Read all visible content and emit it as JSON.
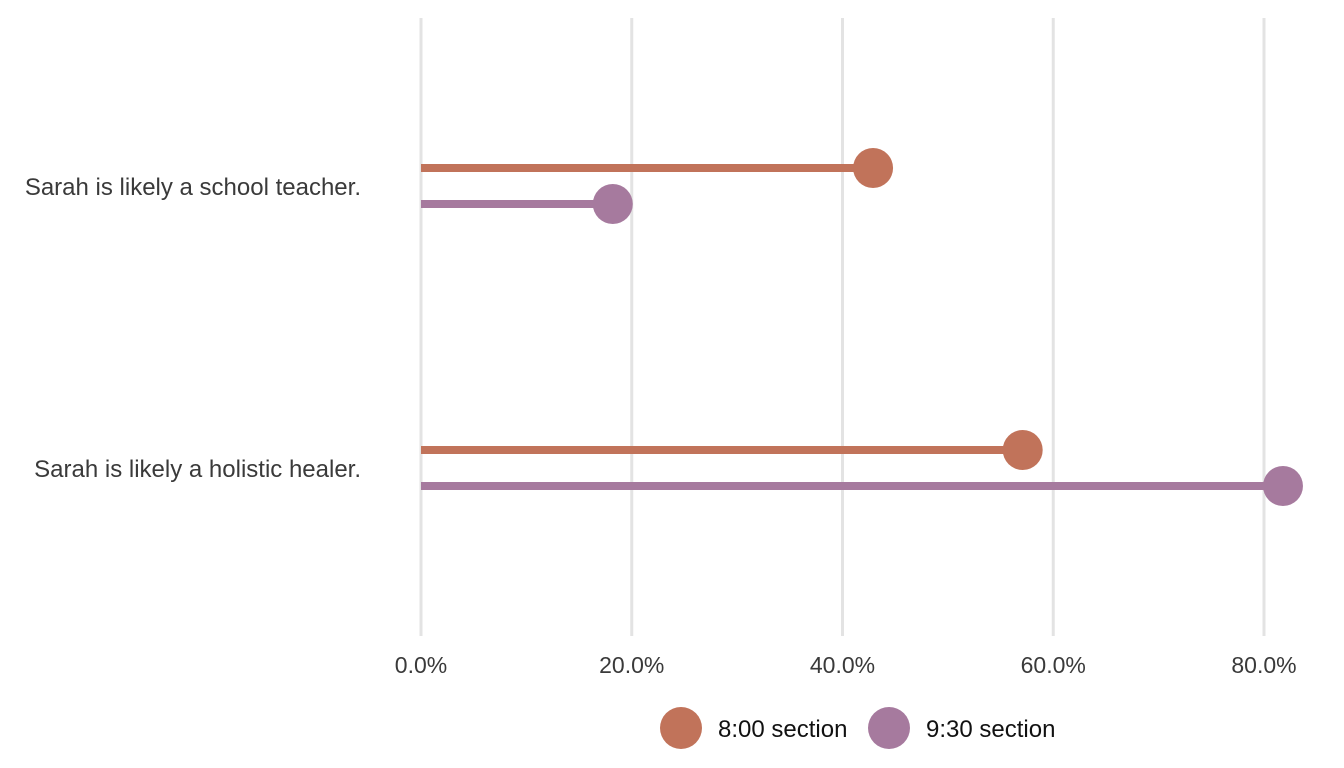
{
  "chart_data": {
    "type": "lollipop",
    "orientation": "horizontal",
    "categories": [
      "Sarah is likely a school teacher.",
      "Sarah is likely a holistic healer."
    ],
    "series": [
      {
        "name": "8:00 section",
        "color": "#c1735a",
        "values": [
          42.9,
          57.1
        ]
      },
      {
        "name": "9:30 section",
        "color": "#a67a9e",
        "values": [
          18.2,
          81.8
        ]
      }
    ],
    "xlim": [
      0,
      80
    ],
    "xticks": [
      0,
      20,
      40,
      60,
      80
    ],
    "xtick_labels": [
      "0.0%",
      "20.0%",
      "40.0%",
      "60.0%",
      "80.0%"
    ],
    "title": "",
    "xlabel": "",
    "ylabel": "",
    "grid": "vertical",
    "legend_position": "bottom"
  }
}
